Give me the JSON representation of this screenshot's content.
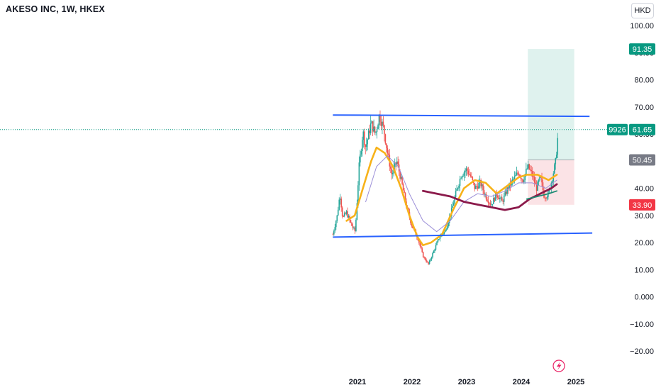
{
  "header": {
    "title": "AKESO INC, 1W, HKEX",
    "currency": "HKD"
  },
  "colors": {
    "up": "#26a69a",
    "down": "#ef5350",
    "trendline": "#2962ff",
    "ma_fast": "#f7b219",
    "ma_slow": "#8b1a4b",
    "ma_thin": "#9c8fd8",
    "ma_green": "#1b8a72",
    "target_zone": "#dff2ee",
    "stop_zone": "#fbe3e6",
    "price_line": "#089981"
  },
  "chart_data": {
    "type": "candlestick",
    "title": "AKESO INC, 1W, HKEX",
    "xlabel": "",
    "ylabel": "",
    "ylim": [
      -20,
      100
    ],
    "y_ticks": [
      "100.00",
      "90.00",
      "80.00",
      "70.00",
      "60.00",
      "50.00",
      "40.00",
      "30.00",
      "20.00",
      "10.00",
      "0.000",
      "−10.00",
      "−20.00"
    ],
    "y_tick_values": [
      100,
      90,
      80,
      70,
      60,
      50,
      40,
      30,
      20,
      10,
      0,
      -10,
      -20
    ],
    "x_ticks": [
      "2021",
      "2022",
      "2023",
      "2024",
      "2025"
    ],
    "x_tick_values": [
      2021.0,
      2022.0,
      2023.0,
      2024.0,
      2025.0
    ],
    "grid": false,
    "price_path": [
      [
        2020.55,
        23
      ],
      [
        2020.63,
        30
      ],
      [
        2020.68,
        38
      ],
      [
        2020.73,
        29
      ],
      [
        2020.8,
        31
      ],
      [
        2020.9,
        26
      ],
      [
        2020.96,
        24
      ],
      [
        2021.03,
        48
      ],
      [
        2021.1,
        61
      ],
      [
        2021.15,
        55
      ],
      [
        2021.25,
        64
      ],
      [
        2021.33,
        60
      ],
      [
        2021.4,
        67
      ],
      [
        2021.48,
        62
      ],
      [
        2021.55,
        53
      ],
      [
        2021.63,
        45
      ],
      [
        2021.72,
        50
      ],
      [
        2021.8,
        43
      ],
      [
        2021.9,
        33
      ],
      [
        2022.0,
        26
      ],
      [
        2022.1,
        22
      ],
      [
        2022.2,
        15
      ],
      [
        2022.3,
        12
      ],
      [
        2022.4,
        17
      ],
      [
        2022.5,
        22
      ],
      [
        2022.6,
        24
      ],
      [
        2022.7,
        30
      ],
      [
        2022.8,
        38
      ],
      [
        2022.9,
        45
      ],
      [
        2023.0,
        47
      ],
      [
        2023.08,
        44
      ],
      [
        2023.15,
        40
      ],
      [
        2023.25,
        42
      ],
      [
        2023.35,
        37
      ],
      [
        2023.45,
        34
      ],
      [
        2023.55,
        38
      ],
      [
        2023.65,
        35
      ],
      [
        2023.75,
        40
      ],
      [
        2023.85,
        43
      ],
      [
        2023.95,
        46
      ],
      [
        2024.03,
        43
      ],
      [
        2024.12,
        48
      ],
      [
        2024.2,
        45
      ],
      [
        2024.28,
        40
      ],
      [
        2024.35,
        44
      ],
      [
        2024.42,
        37
      ],
      [
        2024.5,
        38
      ],
      [
        2024.57,
        44
      ],
      [
        2024.63,
        50
      ],
      [
        2024.68,
        61.65
      ]
    ],
    "series": [
      {
        "name": "",
        "color": "#f7b219",
        "points": [
          [
            2020.8,
            28
          ],
          [
            2020.95,
            30
          ],
          [
            2021.1,
            40
          ],
          [
            2021.25,
            50
          ],
          [
            2021.35,
            55
          ],
          [
            2021.5,
            53
          ],
          [
            2021.65,
            48
          ],
          [
            2021.8,
            40
          ],
          [
            2021.95,
            30
          ],
          [
            2022.1,
            22
          ],
          [
            2022.2,
            19
          ],
          [
            2022.35,
            20
          ],
          [
            2022.55,
            23
          ],
          [
            2022.75,
            32
          ],
          [
            2022.95,
            40
          ],
          [
            2023.15,
            43
          ],
          [
            2023.35,
            42
          ],
          [
            2023.55,
            38
          ],
          [
            2023.75,
            41
          ],
          [
            2023.95,
            44
          ],
          [
            2024.1,
            45
          ],
          [
            2024.3,
            45
          ],
          [
            2024.5,
            43
          ],
          [
            2024.65,
            45
          ]
        ]
      },
      {
        "name": "",
        "color": "#9c8fd8",
        "points": [
          [
            2021.15,
            35
          ],
          [
            2021.35,
            48
          ],
          [
            2021.55,
            52
          ],
          [
            2021.75,
            48
          ],
          [
            2021.95,
            38
          ],
          [
            2022.2,
            28
          ],
          [
            2022.45,
            24
          ],
          [
            2022.7,
            28
          ],
          [
            2022.95,
            35
          ],
          [
            2023.2,
            38
          ],
          [
            2023.45,
            37
          ],
          [
            2023.7,
            39
          ],
          [
            2023.95,
            42
          ],
          [
            2024.2,
            42
          ],
          [
            2024.45,
            40
          ],
          [
            2024.65,
            43
          ]
        ]
      },
      {
        "name": "",
        "color": "#8b1a4b",
        "points": [
          [
            2022.2,
            39
          ],
          [
            2022.45,
            38
          ],
          [
            2022.7,
            37
          ],
          [
            2022.95,
            35
          ],
          [
            2023.2,
            34
          ],
          [
            2023.45,
            33
          ],
          [
            2023.7,
            32
          ],
          [
            2023.95,
            33
          ],
          [
            2024.15,
            36
          ],
          [
            2024.35,
            38
          ],
          [
            2024.55,
            40
          ],
          [
            2024.65,
            41.5
          ]
        ]
      },
      {
        "name": "",
        "color": "#1b8a72",
        "points": [
          [
            2024.1,
            36
          ],
          [
            2024.3,
            37
          ],
          [
            2024.5,
            38
          ],
          [
            2024.65,
            39
          ]
        ]
      }
    ],
    "trendlines": [
      {
        "name": "upper",
        "start": [
          2020.55,
          67
        ],
        "end": [
          2025.25,
          66.5
        ]
      },
      {
        "name": "lower",
        "start": [
          2020.55,
          22
        ],
        "end": [
          2025.3,
          23.5
        ]
      }
    ],
    "position": {
      "entry": 50.45,
      "target": 91.35,
      "stop": 33.9,
      "x_start": 2024.12,
      "x_end": 2024.97
    },
    "last_price": 61.65,
    "price_labels": [
      {
        "text": "91.35",
        "value": 91.35,
        "color": "#089981"
      },
      {
        "text": "61.65",
        "value": 61.65,
        "color": "#089981"
      },
      {
        "text": "50.45",
        "value": 50.45,
        "color": "#787b86"
      },
      {
        "text": "33.90",
        "value": 33.9,
        "color": "#f23645"
      }
    ],
    "countdown_label": "9926"
  }
}
